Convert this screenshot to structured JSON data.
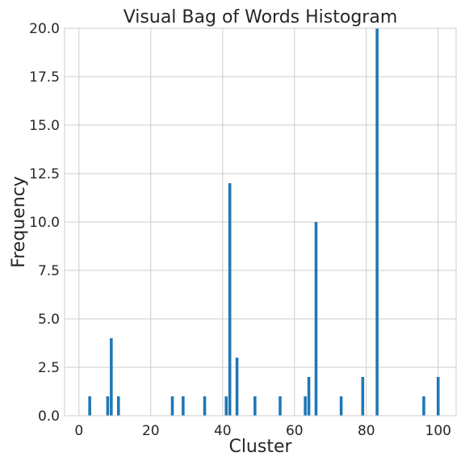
{
  "chart_data": {
    "type": "bar",
    "title": "Visual Bag of Words Histogram",
    "xlabel": "Cluster",
    "ylabel": "Frequency",
    "xlim": [
      -4,
      105
    ],
    "ylim": [
      0,
      20
    ],
    "grid": true,
    "bar_color": "#1f77b4",
    "x_ticks": [
      {
        "value": 0,
        "label": "0"
      },
      {
        "value": 20,
        "label": "20"
      },
      {
        "value": 40,
        "label": "40"
      },
      {
        "value": 60,
        "label": "60"
      },
      {
        "value": 80,
        "label": "80"
      },
      {
        "value": 100,
        "label": "100"
      }
    ],
    "y_ticks": [
      {
        "value": 0,
        "label": "0.0"
      },
      {
        "value": 2.5,
        "label": "2.5"
      },
      {
        "value": 5,
        "label": "5.0"
      },
      {
        "value": 7.5,
        "label": "7.5"
      },
      {
        "value": 10,
        "label": "10.0"
      },
      {
        "value": 12.5,
        "label": "12.5"
      },
      {
        "value": 15,
        "label": "15.0"
      },
      {
        "value": 17.5,
        "label": "17.5"
      },
      {
        "value": 20,
        "label": "20.0"
      }
    ],
    "x": [
      3,
      8,
      9,
      11,
      26,
      29,
      35,
      41,
      42,
      44,
      49,
      56,
      63,
      64,
      66,
      73,
      79,
      83,
      96,
      100
    ],
    "values": [
      1,
      1,
      4,
      1,
      1,
      1,
      1,
      1,
      12,
      3,
      1,
      1,
      1,
      2,
      10,
      1,
      2,
      20,
      1,
      2
    ]
  }
}
